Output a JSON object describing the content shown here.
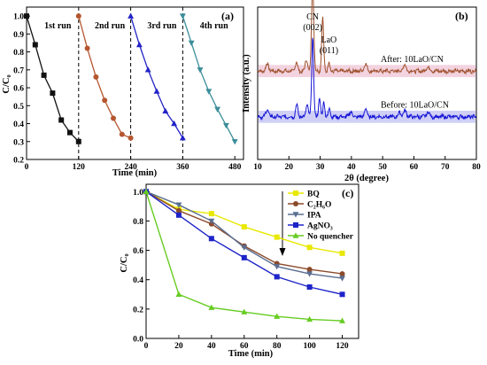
{
  "chart_data": [
    {
      "panel": "(a)",
      "type": "line",
      "xlabel": "Time (min)",
      "ylabel": "C/C₀",
      "xlim": [
        0,
        500
      ],
      "ylim": [
        0.2,
        1.05
      ],
      "xticks": [
        0,
        120,
        240,
        360,
        480
      ],
      "yticks": [
        0.2,
        0.3,
        0.4,
        0.5,
        0.6,
        0.7,
        0.8,
        0.9,
        1.0
      ],
      "ytick_labels": [
        "0.2",
        "0.3",
        "0.4",
        "0.5",
        "0.6",
        "0.7",
        "0.8",
        "0.9",
        "1.0"
      ],
      "dividers": [
        120,
        240,
        360
      ],
      "series": [
        {
          "label": "1st  run",
          "color": "#111111",
          "marker": "square",
          "x": [
            0,
            20,
            40,
            60,
            80,
            100,
            120
          ],
          "y": [
            1.0,
            0.84,
            0.67,
            0.57,
            0.42,
            0.35,
            0.3
          ]
        },
        {
          "label": "2nd  run",
          "color": "#b5562f",
          "marker": "circle",
          "x": [
            120,
            140,
            160,
            180,
            200,
            220,
            240
          ],
          "y": [
            1.0,
            0.82,
            0.66,
            0.53,
            0.43,
            0.34,
            0.32
          ]
        },
        {
          "label": "3rd  run",
          "color": "#2424c8",
          "marker": "triangle-up",
          "x": [
            240,
            260,
            280,
            300,
            320,
            340,
            360
          ],
          "y": [
            1.0,
            0.84,
            0.7,
            0.58,
            0.47,
            0.4,
            0.32
          ]
        },
        {
          "label": "4th  run",
          "color": "#3b8d9a",
          "marker": "triangle-down",
          "x": [
            360,
            380,
            400,
            420,
            440,
            460,
            480
          ],
          "y": [
            1.0,
            0.85,
            0.7,
            0.58,
            0.48,
            0.39,
            0.3
          ]
        }
      ]
    },
    {
      "panel": "(b)",
      "type": "line",
      "xlabel": "2θ (degree)",
      "ylabel": "Intensity (a.u.)",
      "xlim": [
        10,
        80
      ],
      "xticks": [
        10,
        20,
        30,
        40,
        50,
        60,
        70,
        80
      ],
      "ylim": [
        0,
        100
      ],
      "annotations": [
        {
          "text": "CN",
          "sub": "(002)",
          "x": 27.6
        },
        {
          "text": "LaO",
          "sub": "(011)",
          "x": 30.8
        }
      ],
      "series": [
        {
          "name": "After: 10LaO/CN",
          "color": "#a0522d",
          "band": "#f0c8d8",
          "baseline": 58,
          "peaks": [
            [
              13.1,
              5,
              0.6
            ],
            [
              22.4,
              6,
              0.5
            ],
            [
              25.6,
              8,
              0.5
            ],
            [
              27.6,
              58,
              0.5
            ],
            [
              30.8,
              35,
              0.45
            ],
            [
              32.8,
              6,
              0.4
            ],
            [
              44.5,
              5,
              0.6
            ],
            [
              57,
              4,
              0.7
            ],
            [
              64.5,
              3,
              0.7
            ]
          ]
        },
        {
          "name": "Before: 10LaO/CN",
          "color": "#1515d6",
          "band": "#c4c4f5",
          "baseline": 28,
          "peaks": [
            [
              13.1,
              5,
              0.6
            ],
            [
              22.5,
              8,
              0.5
            ],
            [
              25.8,
              8,
              0.5
            ],
            [
              27.6,
              52,
              0.45
            ],
            [
              29.8,
              12,
              0.45
            ],
            [
              31.2,
              10,
              0.4
            ],
            [
              33,
              6,
              0.4
            ],
            [
              39.8,
              4,
              0.5
            ],
            [
              44.6,
              5,
              0.6
            ],
            [
              55.5,
              3,
              0.6
            ],
            [
              57.2,
              4,
              0.7
            ],
            [
              64.5,
              3,
              0.7
            ]
          ]
        }
      ]
    },
    {
      "panel": "(c)",
      "type": "line",
      "xlabel": "Time (min)",
      "ylabel": "C/C₀",
      "xlim": [
        0,
        130
      ],
      "ylim": [
        0.0,
        1.05
      ],
      "xticks": [
        0,
        20,
        40,
        60,
        80,
        100,
        120
      ],
      "yticks": [
        0.0,
        0.2,
        0.4,
        0.6,
        0.8,
        1.0
      ],
      "ytick_labels": [
        "0.0",
        "0.2",
        "0.4",
        "0.6",
        "0.8",
        "1.0"
      ],
      "x": [
        0,
        20,
        40,
        60,
        80,
        100,
        120
      ],
      "series": [
        {
          "name": "BQ",
          "color": "#e8e800",
          "marker": "square",
          "values": [
            1.0,
            0.88,
            0.85,
            0.76,
            0.69,
            0.62,
            0.58
          ]
        },
        {
          "name": "C₂H₆O",
          "color": "#8b4a2b",
          "marker": "circle",
          "values": [
            1.0,
            0.87,
            0.78,
            0.63,
            0.51,
            0.47,
            0.44
          ]
        },
        {
          "name": "IPA",
          "color": "#5a6e90",
          "marker": "triangle-down",
          "values": [
            1.0,
            0.91,
            0.8,
            0.62,
            0.49,
            0.44,
            0.41
          ]
        },
        {
          "name": "AgNO₃",
          "color": "#1e24c8",
          "marker": "square",
          "values": [
            1.0,
            0.84,
            0.68,
            0.55,
            0.42,
            0.35,
            0.3
          ]
        },
        {
          "name": "No quencher",
          "color": "#66cc22",
          "marker": "triangle-up",
          "values": [
            1.0,
            0.3,
            0.21,
            0.18,
            0.15,
            0.13,
            0.12
          ]
        }
      ]
    }
  ]
}
